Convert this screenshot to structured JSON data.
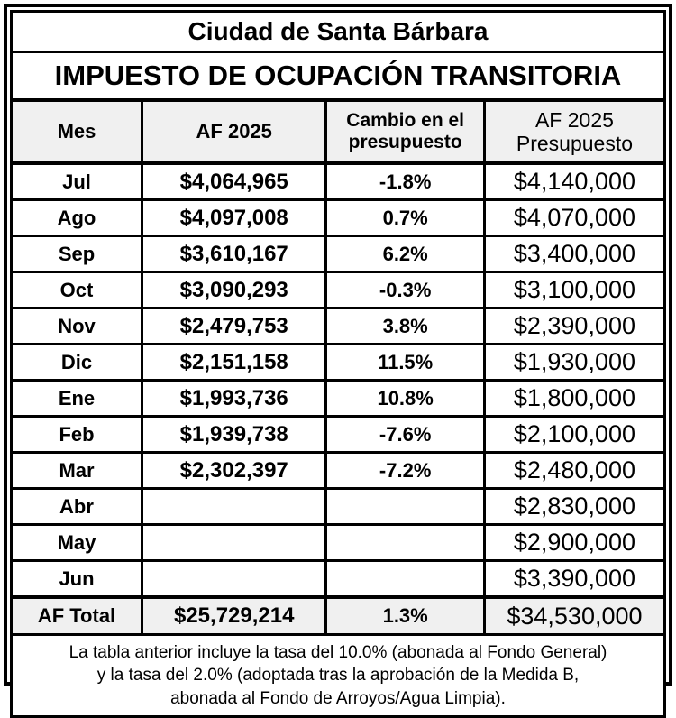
{
  "titles": {
    "line1": "Ciudad de Santa Bárbara",
    "line2": "IMPUESTO DE OCUPACIÓN TRANSITORIA"
  },
  "table": {
    "columns": [
      "Mes",
      "AF 2025",
      "Cambio en el presupuesto",
      "AF 2025 Presupuesto"
    ],
    "rows": [
      {
        "mes": "Jul",
        "af2025": "$4,064,965",
        "cambio": "-1.8%",
        "presupuesto": "$4,140,000"
      },
      {
        "mes": "Ago",
        "af2025": "$4,097,008",
        "cambio": "0.7%",
        "presupuesto": "$4,070,000"
      },
      {
        "mes": "Sep",
        "af2025": "$3,610,167",
        "cambio": "6.2%",
        "presupuesto": "$3,400,000"
      },
      {
        "mes": "Oct",
        "af2025": "$3,090,293",
        "cambio": "-0.3%",
        "presupuesto": "$3,100,000"
      },
      {
        "mes": "Nov",
        "af2025": "$2,479,753",
        "cambio": "3.8%",
        "presupuesto": "$2,390,000"
      },
      {
        "mes": "Dic",
        "af2025": "$2,151,158",
        "cambio": "11.5%",
        "presupuesto": "$1,930,000"
      },
      {
        "mes": "Ene",
        "af2025": "$1,993,736",
        "cambio": "10.8%",
        "presupuesto": "$1,800,000"
      },
      {
        "mes": "Feb",
        "af2025": "$1,939,738",
        "cambio": "-7.6%",
        "presupuesto": "$2,100,000"
      },
      {
        "mes": "Mar",
        "af2025": "$2,302,397",
        "cambio": "-7.2%",
        "presupuesto": "$2,480,000"
      },
      {
        "mes": "Abr",
        "af2025": "",
        "cambio": "",
        "presupuesto": "$2,830,000"
      },
      {
        "mes": "May",
        "af2025": "",
        "cambio": "",
        "presupuesto": "$2,900,000"
      },
      {
        "mes": "Jun",
        "af2025": "",
        "cambio": "",
        "presupuesto": "$3,390,000"
      }
    ],
    "total": {
      "mes": "AF Total",
      "af2025": "$25,729,214",
      "cambio": "1.3%",
      "presupuesto": "$34,530,000"
    }
  },
  "footnote": {
    "lines": [
      "La tabla anterior incluye la tasa del 10.0% (abonada al Fondo General)",
      "y la tasa del 2.0% (adoptada tras la aprobación de la Medida B,",
      "abonada al Fondo de Arroyos/Agua Limpia)."
    ]
  },
  "colors": {
    "border": "#000000",
    "header_bg": "#f0f0f0",
    "total_bg": "#f0f0f0",
    "text": "#000000"
  }
}
